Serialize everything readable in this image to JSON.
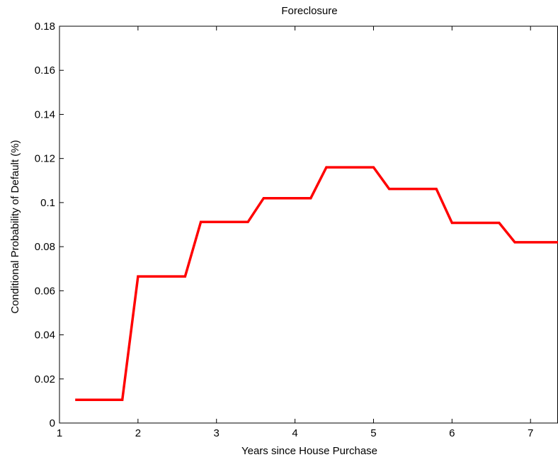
{
  "chart_data": {
    "type": "line",
    "title": "Foreclosure",
    "xlabel": "Years since House Purchase",
    "ylabel": "Conditional Probability of Default (%)",
    "xlim": [
      1,
      7.35
    ],
    "ylim": [
      0,
      0.18
    ],
    "xticks": [
      1,
      2,
      3,
      4,
      5,
      6,
      7
    ],
    "xtick_labels": [
      "1",
      "2",
      "3",
      "4",
      "5",
      "6",
      "7"
    ],
    "yticks": [
      0,
      0.02,
      0.04,
      0.06,
      0.08,
      0.1,
      0.12,
      0.14,
      0.16,
      0.18
    ],
    "ytick_labels": [
      "0",
      "0.02",
      "0.04",
      "0.06",
      "0.08",
      "0.1",
      "0.12",
      "0.14",
      "0.16",
      "0.18"
    ],
    "grid": false,
    "series": [
      {
        "color": "#ff0000",
        "x": [
          1.2,
          1.8,
          2.0,
          2.6,
          2.8,
          3.4,
          3.6,
          4.2,
          4.4,
          5.0,
          5.2,
          5.8,
          6.0,
          6.6,
          6.8,
          7.35
        ],
        "y": [
          0.0105,
          0.0105,
          0.0665,
          0.0665,
          0.0912,
          0.0912,
          0.102,
          0.102,
          0.116,
          0.116,
          0.1062,
          0.1062,
          0.0908,
          0.0908,
          0.082,
          0.082
        ]
      }
    ]
  }
}
